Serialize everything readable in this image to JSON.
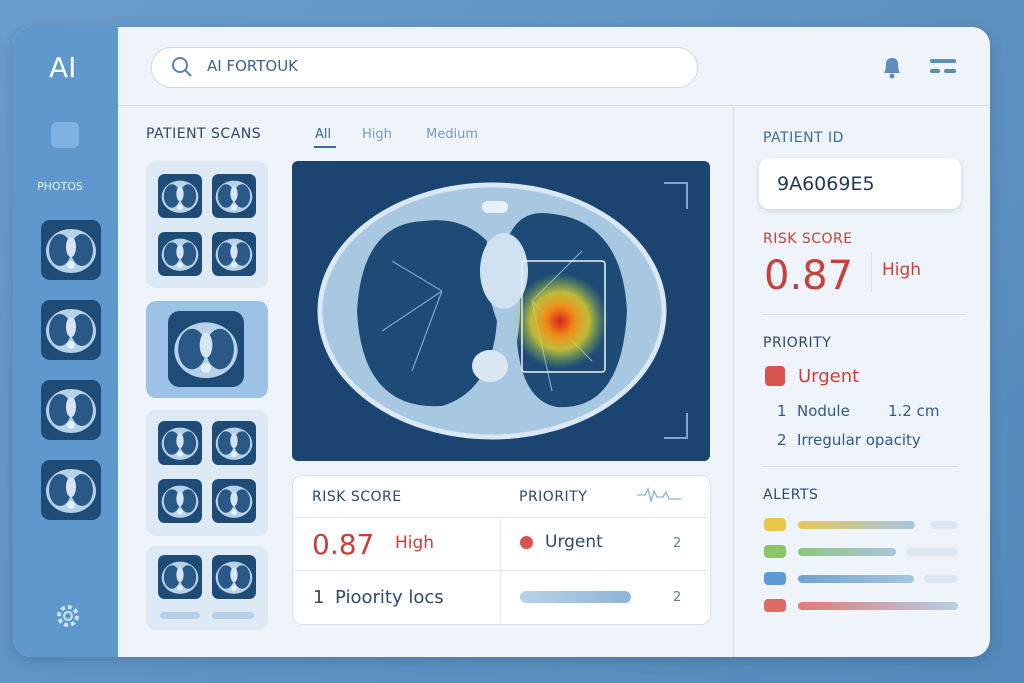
{
  "sidebar": {
    "logo": "AI",
    "photos": "PHOTOS"
  },
  "search": {
    "placeholder": "AI FORTOUK"
  },
  "scans": {
    "title": "PATIENT SCANS",
    "tabs": [
      "All",
      "High",
      "Medium"
    ]
  },
  "summary": {
    "headers": [
      "RISK SCORE",
      "PRIORITY"
    ],
    "row1": {
      "score": "0.87",
      "level": "High",
      "priority": "Urgent",
      "count": "2"
    },
    "row2": {
      "index": "1",
      "label": "Pioority locs",
      "count": "2"
    }
  },
  "patient": {
    "id_label": "PATIENT ID",
    "id": "9A6069E5",
    "risk_label": "RISK SCORE",
    "risk_score": "0.87",
    "risk_level": "High",
    "priority_label": "PRIORITY",
    "priority": "Urgent",
    "findings": [
      {
        "index": "1",
        "name": "Nodule",
        "size": "1.2 cm"
      },
      {
        "index": "2",
        "name": "Irregular opacity"
      }
    ],
    "alerts_label": "ALERTS"
  }
}
